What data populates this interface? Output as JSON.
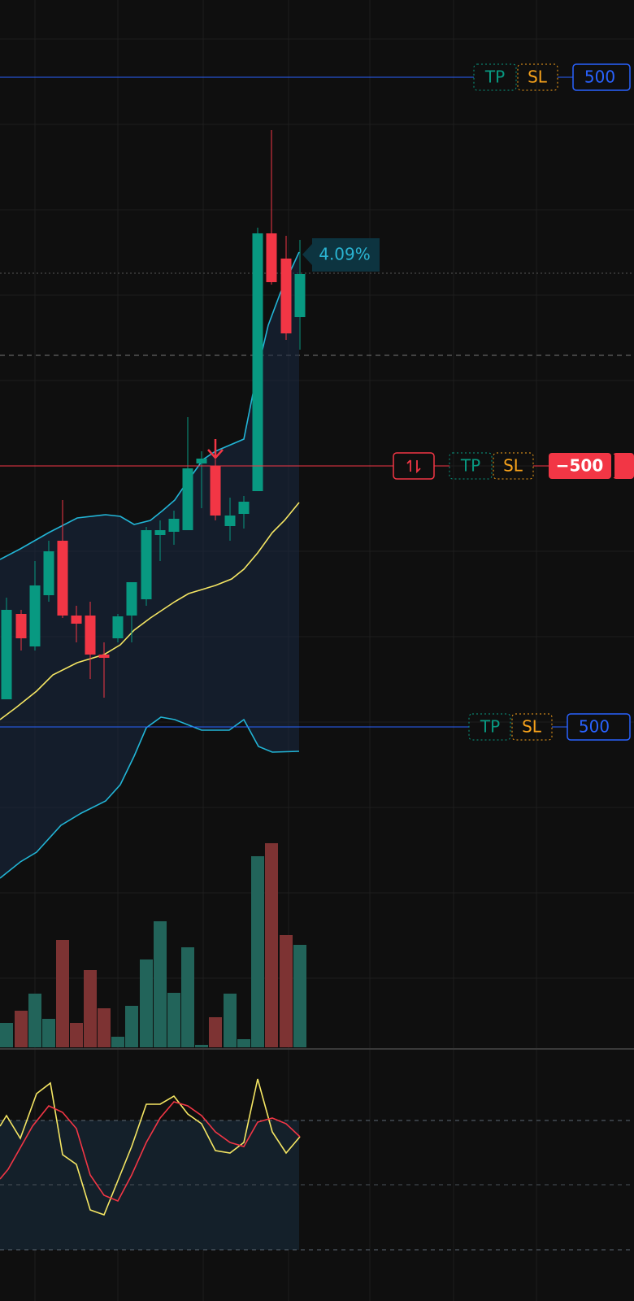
{
  "position_lines": [
    {
      "tp_label": "TP",
      "sl_label": "SL",
      "quantity": "500"
    },
    {
      "tp_label": "TP",
      "sl_label": "SL",
      "quantity": "−500"
    },
    {
      "tp_label": "TP",
      "sl_label": "SL",
      "quantity": "500"
    }
  ],
  "change_label": "4.09%"
}
